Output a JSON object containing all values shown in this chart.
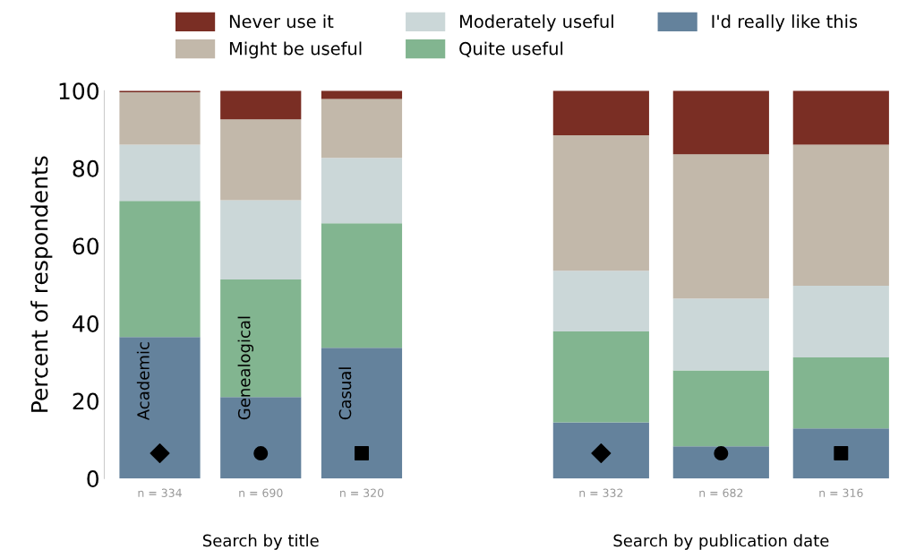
{
  "chart_data": [
    {
      "type": "bar",
      "stacked": true,
      "xlabel": "Search by title",
      "ylabel": "Percent of respondents",
      "categories": [
        "n = 334",
        "n = 690",
        "n = 320"
      ],
      "series": [
        {
          "name": "I'd really like this",
          "color": "#64829c",
          "values": [
            36.5,
            21.0,
            33.7
          ]
        },
        {
          "name": "Quite useful",
          "color": "#82b590",
          "values": [
            35.1,
            30.3,
            32.1
          ]
        },
        {
          "name": "Moderately useful",
          "color": "#cbd7d8",
          "values": [
            14.5,
            20.5,
            16.9
          ]
        },
        {
          "name": "Might be useful",
          "color": "#c2b8aa",
          "values": [
            13.5,
            20.8,
            15.2
          ]
        },
        {
          "name": "Never use it",
          "color": "#7a2e24",
          "values": [
            0.4,
            7.4,
            2.1
          ]
        }
      ],
      "ylim": [
        0,
        100
      ],
      "yticks": [
        0,
        20,
        40,
        60,
        80,
        100
      ],
      "grid": false,
      "legend": "top",
      "annotations": [
        "Academic",
        "Genealogical",
        "Casual"
      ]
    },
    {
      "type": "bar",
      "stacked": true,
      "xlabel": "Search by publication date",
      "categories": [
        "n = 332",
        "n = 682",
        "n = 316"
      ],
      "series": [
        {
          "color": "#64829c",
          "values": [
            14.5,
            8.3,
            12.9
          ]
        },
        {
          "color": "#82b590",
          "values": [
            23.4,
            19.6,
            18.3
          ]
        },
        {
          "color": "#cbd7d8",
          "values": [
            15.7,
            18.5,
            18.5
          ]
        },
        {
          "color": "#c2b8aa",
          "values": [
            34.9,
            37.2,
            36.4
          ]
        },
        {
          "color": "#7a2e24",
          "values": [
            11.5,
            16.4,
            13.9
          ]
        }
      ],
      "ylim": [
        0,
        100
      ],
      "grid": false,
      "tick_labels": "x"
    }
  ]
}
